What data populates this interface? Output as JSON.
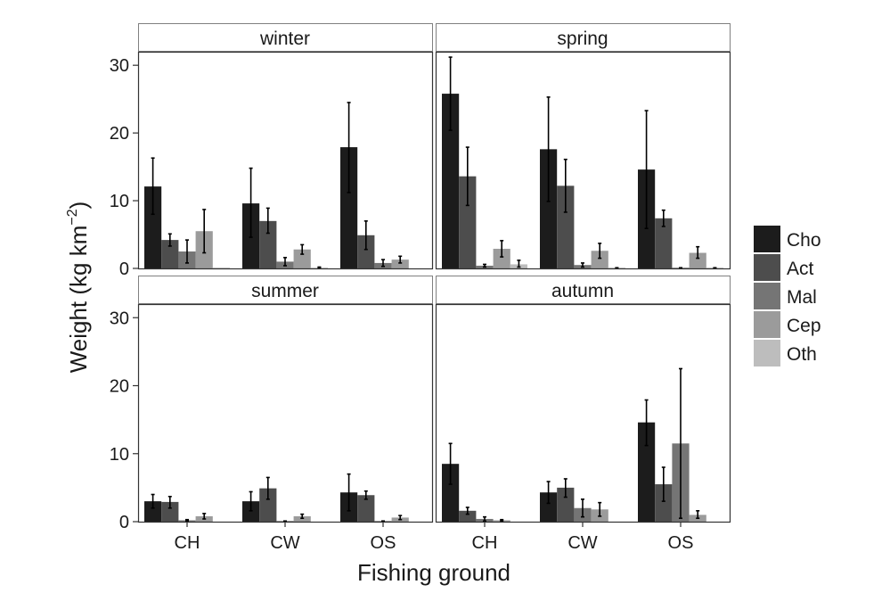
{
  "chart_data": {
    "type": "bar",
    "xlabel": "Fishing ground",
    "ylabel": "Weight (kg km",
    "ylabel_superscript": "−2",
    "ylabel_suffix": ")",
    "ylim": [
      0,
      32
    ],
    "yticks": [
      0,
      10,
      20,
      30
    ],
    "categories": [
      "CH",
      "CW",
      "OS"
    ],
    "legend": {
      "position": "right",
      "entries": [
        {
          "name": "Cho",
          "color": "#1c1c1c"
        },
        {
          "name": "Act",
          "color": "#4d4d4d"
        },
        {
          "name": "Mal",
          "color": "#757575"
        },
        {
          "name": "Cep",
          "color": "#9b9b9b"
        },
        {
          "name": "Oth",
          "color": "#bdbdbd"
        }
      ]
    },
    "panels": [
      {
        "title": "winter",
        "series": [
          {
            "name": "Cho",
            "values": [
              12.1,
              9.6,
              17.9
            ],
            "err_low": [
              8.0,
              4.6,
              11.2
            ],
            "err_high": [
              16.3,
              14.8,
              24.5
            ]
          },
          {
            "name": "Act",
            "values": [
              4.2,
              7.0,
              4.9
            ],
            "err_low": [
              3.3,
              5.2,
              2.8
            ],
            "err_high": [
              5.1,
              8.9,
              7.0
            ]
          },
          {
            "name": "Mal",
            "values": [
              2.5,
              1.0,
              0.8
            ],
            "err_low": [
              0.8,
              0.4,
              0.3
            ],
            "err_high": [
              4.2,
              1.6,
              1.3
            ]
          },
          {
            "name": "Cep",
            "values": [
              5.5,
              2.8,
              1.3
            ],
            "err_low": [
              2.3,
              2.1,
              0.8
            ],
            "err_high": [
              8.7,
              3.5,
              1.8
            ]
          },
          {
            "name": "Oth",
            "values": [
              0.1,
              0.1,
              0.0
            ],
            "err_low": [
              0.1,
              0.1,
              0.0
            ],
            "err_high": [
              0.1,
              0.2,
              0.0
            ]
          }
        ]
      },
      {
        "title": "spring",
        "series": [
          {
            "name": "Cho",
            "values": [
              25.8,
              17.6,
              14.6
            ],
            "err_low": [
              20.4,
              9.9,
              5.9
            ],
            "err_high": [
              31.2,
              25.3,
              23.3
            ]
          },
          {
            "name": "Act",
            "values": [
              13.6,
              12.2,
              7.4
            ],
            "err_low": [
              9.3,
              8.3,
              6.2
            ],
            "err_high": [
              17.9,
              16.1,
              8.6
            ]
          },
          {
            "name": "Mal",
            "values": [
              0.4,
              0.5,
              0.1
            ],
            "err_low": [
              0.2,
              0.2,
              0.0
            ],
            "err_high": [
              0.6,
              0.8,
              0.1
            ]
          },
          {
            "name": "Cep",
            "values": [
              2.9,
              2.6,
              2.3
            ],
            "err_low": [
              1.7,
              1.5,
              1.5
            ],
            "err_high": [
              4.1,
              3.7,
              3.2
            ]
          },
          {
            "name": "Oth",
            "values": [
              0.6,
              0.1,
              0.1
            ],
            "err_low": [
              0.2,
              0.0,
              0.0
            ],
            "err_high": [
              1.2,
              0.1,
              0.1
            ]
          }
        ]
      },
      {
        "title": "summer",
        "series": [
          {
            "name": "Cho",
            "values": [
              3.0,
              3.0,
              4.3
            ],
            "err_low": [
              2.0,
              1.6,
              1.6
            ],
            "err_high": [
              4.0,
              4.4,
              7.0
            ]
          },
          {
            "name": "Act",
            "values": [
              2.9,
              4.9,
              3.9
            ],
            "err_low": [
              2.0,
              3.3,
              3.3
            ],
            "err_high": [
              3.7,
              6.5,
              4.5
            ]
          },
          {
            "name": "Mal",
            "values": [
              0.2,
              0.1,
              0.1
            ],
            "err_low": [
              0.1,
              0.0,
              0.0
            ],
            "err_high": [
              0.3,
              0.1,
              0.1
            ]
          },
          {
            "name": "Cep",
            "values": [
              0.8,
              0.8,
              0.6
            ],
            "err_low": [
              0.4,
              0.5,
              0.3
            ],
            "err_high": [
              1.2,
              1.1,
              0.9
            ]
          },
          {
            "name": "Oth",
            "values": [
              0.0,
              0.0,
              0.0
            ],
            "err_low": [
              0.0,
              0.0,
              0.0
            ],
            "err_high": [
              0.0,
              0.0,
              0.0
            ]
          }
        ]
      },
      {
        "title": "autumn",
        "series": [
          {
            "name": "Cho",
            "values": [
              8.5,
              4.3,
              14.6
            ],
            "err_low": [
              5.5,
              2.7,
              11.2
            ],
            "err_high": [
              11.5,
              5.9,
              17.9
            ]
          },
          {
            "name": "Act",
            "values": [
              1.6,
              5.0,
              5.5
            ],
            "err_low": [
              1.1,
              3.6,
              3.0
            ],
            "err_high": [
              2.1,
              6.3,
              8.0
            ]
          },
          {
            "name": "Mal",
            "values": [
              0.4,
              2.0,
              11.5
            ],
            "err_low": [
              0.1,
              0.7,
              0.5
            ],
            "err_high": [
              0.7,
              3.3,
              22.5
            ]
          },
          {
            "name": "Cep",
            "values": [
              0.2,
              1.8,
              1.0
            ],
            "err_low": [
              0.1,
              0.8,
              0.5
            ],
            "err_high": [
              0.3,
              2.8,
              1.6
            ]
          },
          {
            "name": "Oth",
            "values": [
              0.0,
              0.0,
              0.0
            ],
            "err_low": [
              0.0,
              0.0,
              0.0
            ],
            "err_high": [
              0.0,
              0.0,
              0.0
            ]
          }
        ]
      }
    ]
  }
}
